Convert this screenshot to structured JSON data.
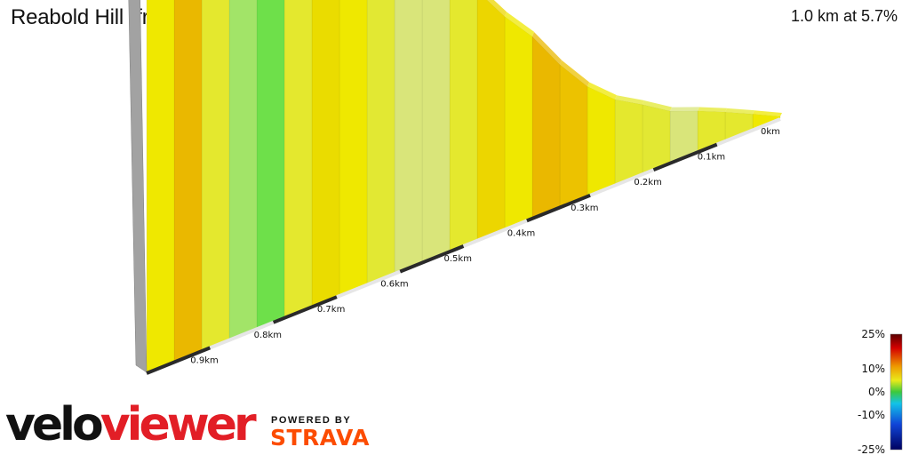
{
  "header": {
    "title": "Reabold Hill (from Perry Lakes Drive)",
    "summary": "1.0 km at 5.7%"
  },
  "branding": {
    "logo_part1": "velo",
    "logo_part2": "viewer",
    "powered_by": "POWERED BY",
    "strava": "STRAVA"
  },
  "colors": {
    "logo_red": "#e21e26",
    "strava_orange": "#fc4c02"
  },
  "chart_data": {
    "type": "area",
    "title": "Reabold Hill (from Perry Lakes Drive)",
    "subtitle": "1.0 km at 5.7%",
    "distance_unit": "km",
    "distance_ticks": [
      "0km",
      "0.1km",
      "0.2km",
      "0.3km",
      "0.4km",
      "0.5km",
      "0.6km",
      "0.7km",
      "0.8km",
      "0.9km"
    ],
    "segments": [
      {
        "grade": 6,
        "color": "#efe800"
      },
      {
        "grade": 5,
        "color": "#e4e82e"
      },
      {
        "grade": 4,
        "color": "#e4e82e"
      },
      {
        "grade": 3,
        "color": "#d9e57a"
      },
      {
        "grade": 5,
        "color": "#e2e833"
      },
      {
        "grade": 4,
        "color": "#e4e82e"
      },
      {
        "grade": 6,
        "color": "#efe800"
      },
      {
        "grade": 8,
        "color": "#ecc200"
      },
      {
        "grade": 9,
        "color": "#eab800"
      },
      {
        "grade": 6,
        "color": "#efe800"
      },
      {
        "grade": 7,
        "color": "#ecd600"
      },
      {
        "grade": 5,
        "color": "#e4e82e"
      },
      {
        "grade": 4,
        "color": "#d9e57a"
      },
      {
        "grade": 3,
        "color": "#d9e57a"
      },
      {
        "grade": 5,
        "color": "#e2e833"
      },
      {
        "grade": 6,
        "color": "#efe800"
      },
      {
        "grade": 7,
        "color": "#eadc00"
      },
      {
        "grade": 5,
        "color": "#e4e82e"
      },
      {
        "grade": 0,
        "color": "#6ee04a"
      },
      {
        "grade": 2,
        "color": "#a2e468"
      },
      {
        "grade": 5,
        "color": "#e4e82e"
      },
      {
        "grade": 9,
        "color": "#eab800"
      },
      {
        "grade": 6,
        "color": "#efe800"
      }
    ],
    "grade_scale": {
      "min": -25,
      "max": 25,
      "tick_labels": [
        "25%",
        "10%",
        "0%",
        "-10%",
        "-25%"
      ]
    }
  }
}
